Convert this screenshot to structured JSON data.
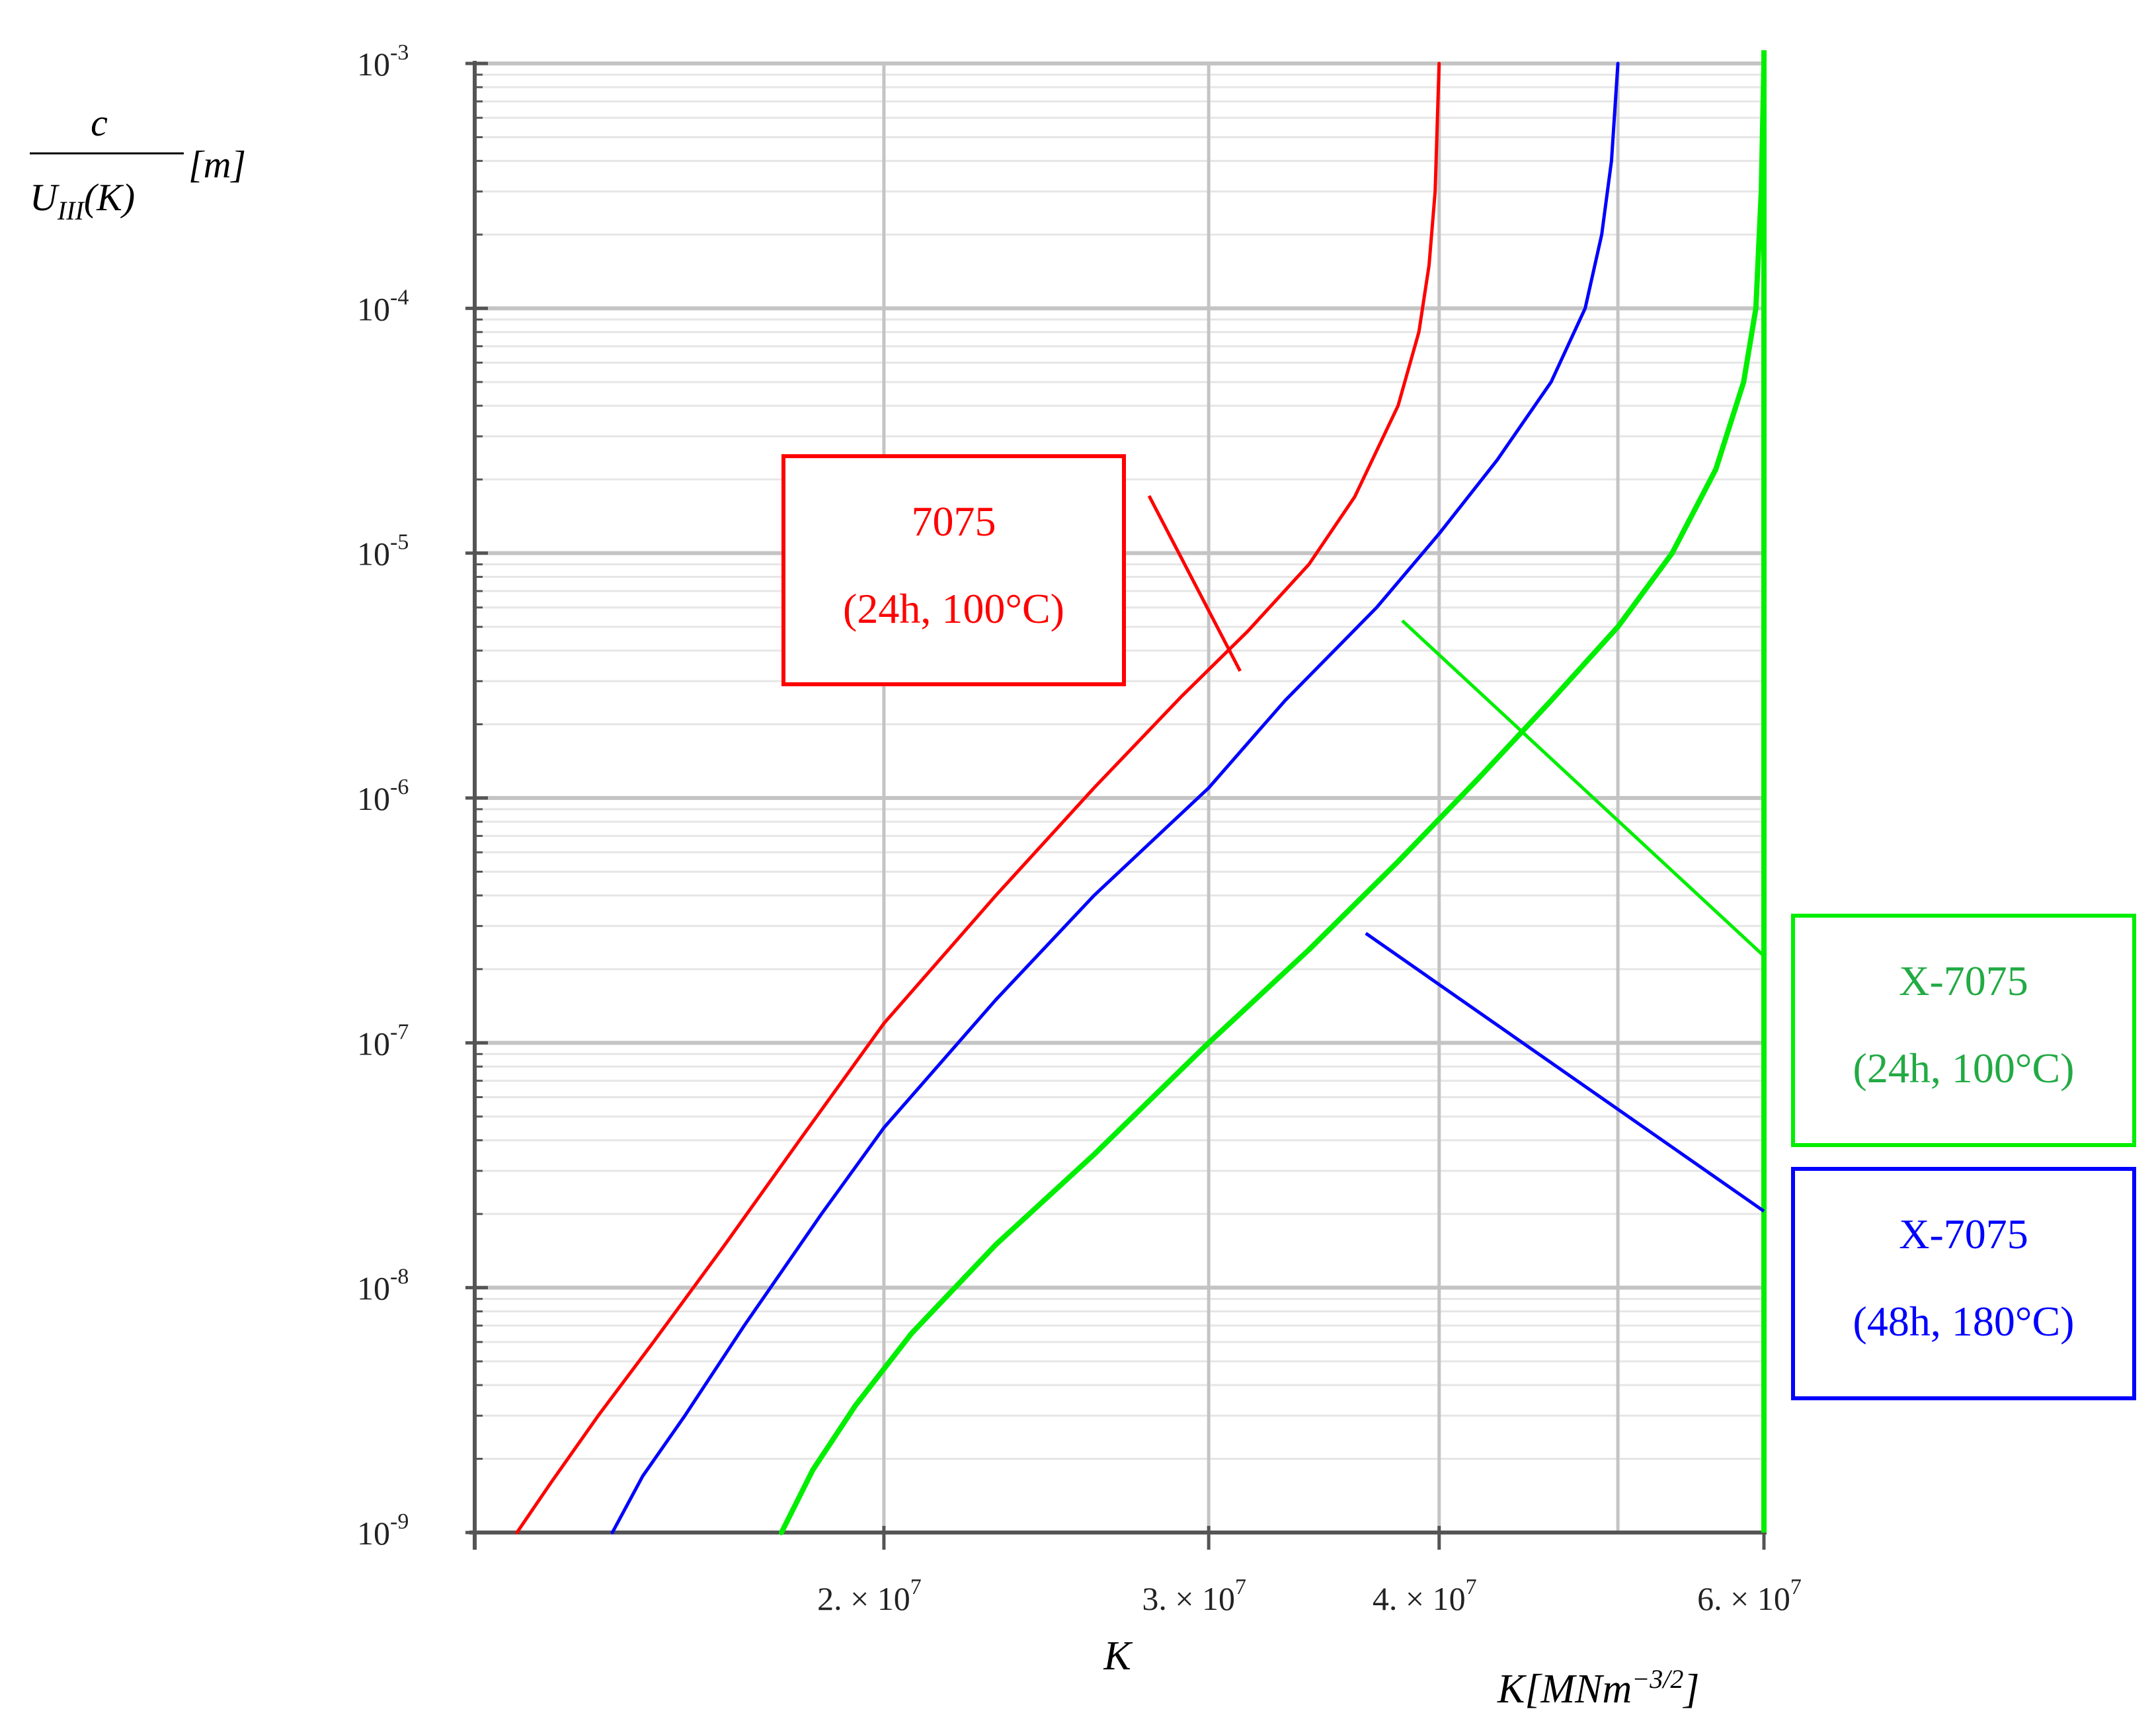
{
  "chart_data": {
    "type": "line",
    "title": "",
    "x_scale": "log",
    "y_scale": "log",
    "xlim": [
      12000000,
      60000000
    ],
    "ylim": [
      1e-09,
      0.001
    ],
    "grid": true,
    "xlabel": "K",
    "xlabel_units": "K[MNm",
    "xlabel_units_exp": "−3/2",
    "xlabel_units_close": "]",
    "ylabel": {
      "numerator": "c",
      "denominator_main": "U",
      "denominator_sub": "III",
      "denominator_arg": "(K)",
      "units": "[m]"
    },
    "x_ticks": [
      {
        "value": 20000000,
        "mantissa": "2. × 10",
        "exponent": "7"
      },
      {
        "value": 30000000,
        "mantissa": "3. × 10",
        "exponent": "7"
      },
      {
        "value": 40000000,
        "mantissa": "4. × 10",
        "exponent": "7"
      },
      {
        "value": 60000000,
        "mantissa": "6. × 10",
        "exponent": "7"
      }
    ],
    "y_ticks": [
      {
        "value": 0.001,
        "base": "10",
        "exponent": "-3"
      },
      {
        "value": 0.0001,
        "base": "10",
        "exponent": "-4"
      },
      {
        "value": 1e-05,
        "base": "10",
        "exponent": "-5"
      },
      {
        "value": 1e-06,
        "base": "10",
        "exponent": "-6"
      },
      {
        "value": 1e-07,
        "base": "10",
        "exponent": "-7"
      },
      {
        "value": 1e-08,
        "base": "10",
        "exponent": "-8"
      },
      {
        "value": 1e-09,
        "base": "10",
        "exponent": "-9"
      }
    ],
    "series": [
      {
        "color": "#ff0000",
        "x": [
          12650000,
          13200000,
          14000000,
          15000000,
          16400000,
          18000000,
          20000000,
          23000000,
          26000000,
          29000000,
          31500000,
          34000000,
          36000000,
          38000000,
          39000000,
          39500000,
          39800000,
          40000000
        ],
        "y": [
          1e-09,
          1.6e-09,
          3e-09,
          6e-09,
          1.5e-08,
          4e-08,
          1.2e-07,
          4e-07,
          1.1e-06,
          2.6e-06,
          4.8e-06,
          9e-06,
          1.7e-05,
          4e-05,
          8e-05,
          0.00015,
          0.0003,
          0.001
        ]
      },
      {
        "color": "#0000ff",
        "x": [
          14250000,
          14800000,
          15600000,
          16800000,
          18500000,
          20000000,
          23000000,
          26000000,
          30000000,
          33000000,
          37000000,
          40000000,
          43000000,
          46000000,
          48000000,
          49000000,
          49600000,
          50000000
        ],
        "y": [
          1e-09,
          1.7e-09,
          3e-09,
          7e-09,
          2e-08,
          4.5e-08,
          1.5e-07,
          4e-07,
          1.1e-06,
          2.5e-06,
          6e-06,
          1.2e-05,
          2.4e-05,
          5e-05,
          0.0001,
          0.0002,
          0.0004,
          0.001
        ]
      },
      {
        "color": "#00ee00",
        "x": [
          17600000,
          18300000,
          19300000,
          20700000,
          23000000,
          26000000,
          30000000,
          34000000,
          38000000,
          42000000,
          46000000,
          50000000,
          53500000,
          56500000,
          58500000,
          59400000,
          59800000,
          60000000
        ],
        "y": [
          1e-09,
          1.8e-09,
          3.3e-09,
          6.5e-09,
          1.5e-08,
          3.5e-08,
          1e-07,
          2.4e-07,
          5.5e-07,
          1.2e-06,
          2.5e-06,
          5e-06,
          1e-05,
          2.2e-05,
          5e-05,
          0.0001,
          0.0003,
          0.001
        ]
      }
    ],
    "vertical_lines": [
      {
        "x": 60000000,
        "color": "#00ee00"
      }
    ],
    "annotations": [
      {
        "line1": "7075",
        "line2": "(24h, 100°C)",
        "color": "#ff0000",
        "target": {
          "x": 31200000,
          "y": 3.3e-06
        }
      },
      {
        "line1": "X-7075",
        "line2": "(24h, 100°C)",
        "color": "#22aa44",
        "line_color": "#00ee00",
        "target": {
          "x": 38200000,
          "y": 5.3e-06
        }
      },
      {
        "line1": "X-7075",
        "line2": "(48h, 180°C)",
        "color": "#0000ff",
        "target": {
          "x": 36500000,
          "y": 2.8e-07
        }
      }
    ]
  }
}
